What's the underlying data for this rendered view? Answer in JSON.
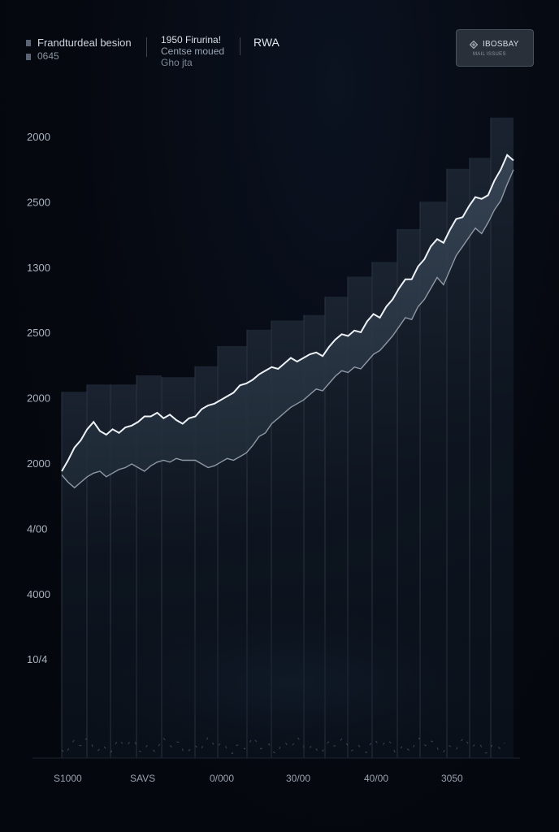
{
  "header": {
    "legend_title": "Frandturdeal besion",
    "legend_sub": "0645",
    "mid_title": "1950 Firurina!",
    "mid_sub1": "Centse moued",
    "mid_sub2": "Gho jta",
    "rwa": "RWA",
    "badge_label": "IBOSBAY",
    "badge_sub": "MAIL ISSUES",
    "badge_icon": "diamond-cross-icon"
  },
  "colors": {
    "background": "#05080f",
    "line_primary": "#eef2f7",
    "line_secondary": "#8e98a6",
    "band_fill": "#2a3644",
    "grid": "#2b3340"
  },
  "chart_data": {
    "type": "line",
    "ytick_labels": [
      "2000",
      "2500",
      "1300",
      "2500",
      "2000",
      "2000",
      "4/00",
      "4000",
      "10/4"
    ],
    "xtick_labels": [
      "S1000",
      "SAVS",
      "0/000",
      "30/00",
      "40/00",
      "3050"
    ],
    "grid": true,
    "series": [
      {
        "values": [
          0,
          0.6,
          1.3,
          1.7,
          2.3,
          2.7,
          2.2,
          2.0,
          2.3,
          2.1,
          2.4,
          2.5,
          2.7,
          3.0,
          3.0,
          3.2,
          2.9,
          3.1,
          2.8,
          2.6,
          2.9,
          3.0,
          3.4,
          3.6,
          3.7,
          3.9,
          4.1,
          4.3,
          4.7,
          4.8,
          5.0,
          5.3,
          5.5,
          5.7,
          5.6,
          5.9,
          6.2,
          6.0,
          6.2,
          6.4,
          6.5,
          6.3,
          6.8,
          7.2,
          7.5,
          7.4,
          7.7,
          7.6,
          8.2,
          8.6,
          8.4,
          9.0,
          9.4,
          10.0,
          10.5,
          10.5,
          11.2,
          11.6,
          12.3,
          12.7,
          12.5,
          13.2,
          13.8,
          13.9,
          14.5,
          15.0,
          14.9,
          15.1,
          15.9,
          16.5,
          17.3,
          17.0
        ]
      },
      {
        "values": [
          -0.2,
          -0.6,
          -0.9,
          -0.6,
          -0.3,
          -0.1,
          0.0,
          -0.3,
          -0.1,
          0.1,
          0.2,
          0.4,
          0.2,
          0.0,
          0.3,
          0.5,
          0.6,
          0.5,
          0.7,
          0.6,
          0.6,
          0.6,
          0.4,
          0.2,
          0.3,
          0.5,
          0.7,
          0.6,
          0.8,
          1.0,
          1.4,
          1.9,
          2.1,
          2.6,
          2.9,
          3.2,
          3.5,
          3.7,
          3.9,
          4.2,
          4.5,
          4.4,
          4.8,
          5.2,
          5.5,
          5.4,
          5.7,
          5.6,
          6.0,
          6.4,
          6.6,
          7.0,
          7.4,
          7.9,
          8.4,
          8.3,
          9.0,
          9.4,
          10.0,
          10.6,
          10.2,
          11.0,
          11.8,
          12.3,
          12.8,
          13.3,
          13.0,
          13.6,
          14.3,
          14.8,
          15.7,
          16.5
        ]
      }
    ]
  }
}
